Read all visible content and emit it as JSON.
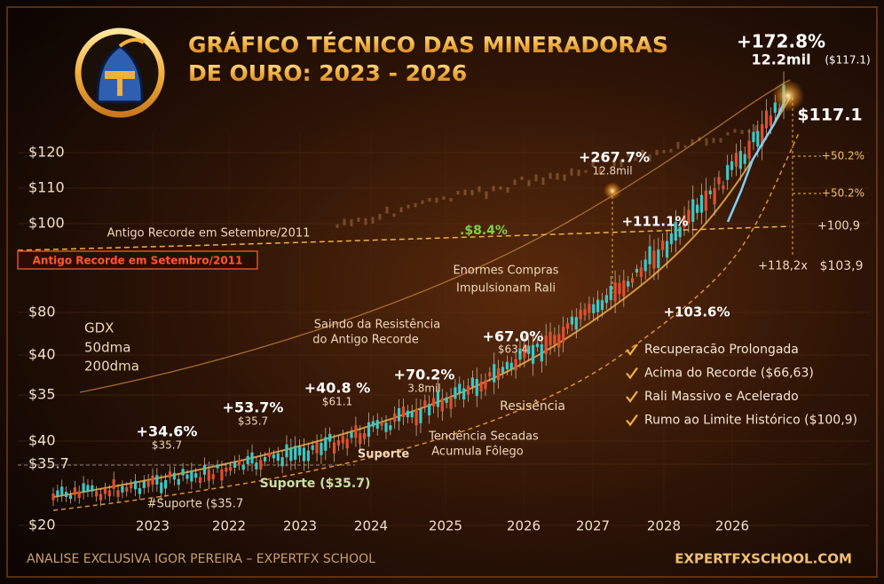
{
  "header": {
    "title": [
      "GRÁFICO TÉCNICO DAS MINERADORAS",
      "DE OURO: 2023 - 2026"
    ]
  },
  "y_axis_labels": [
    "$120",
    "$110",
    "$100",
    "$80",
    "$40",
    "$35",
    "$40",
    "$35.7",
    "$20"
  ],
  "x_axis_labels": [
    "2023",
    "2022",
    "2023",
    "2024",
    "2025",
    "2026",
    "2027",
    "2028",
    "2026"
  ],
  "annotations": [
    "+172.8%",
    "12.2mil",
    "($117.1)",
    "$117.1",
    "+267.7%",
    "12.8mil",
    "+50.2%",
    "+50.2%",
    "+100,9",
    "+118,2x",
    "$103,9",
    "Antigo Recorde em Setembre/2011",
    ".$8.4%",
    "+111.1%",
    "Enormes Compras",
    "Impulsionam Rali",
    "Saindo da Resistência",
    "do Antigo Recorde",
    "+67.0%",
    "$63.4",
    "+103.6%",
    "GDX",
    "50dma",
    "200dma",
    "+70.2%",
    "3.8mil",
    "+40.8 %",
    "$61.1",
    "+53.7%",
    "$35.7",
    "+34.6%",
    "$35.7",
    "Resisência",
    "Tendência Secadas",
    "Acumula Fôlego",
    "Suporte",
    "Suporte ($35.7)",
    "#Suporte ($35.7"
  ],
  "record_badge": "Antigo Recorde em Setembro/2011",
  "checklist": [
    "Recuperacão Prolongada",
    "Acima do Recorde ($66,63)",
    "Rali Massivo e Acelerado",
    "Rumo ao Limite Histórico ($100,9)"
  ],
  "footer": {
    "left": "ANALISE EXCLUSIVA IGOR PEREIRA – EXPERTFX SCHOOL",
    "right": "EXPERTFXSCHOOL.COM"
  }
}
